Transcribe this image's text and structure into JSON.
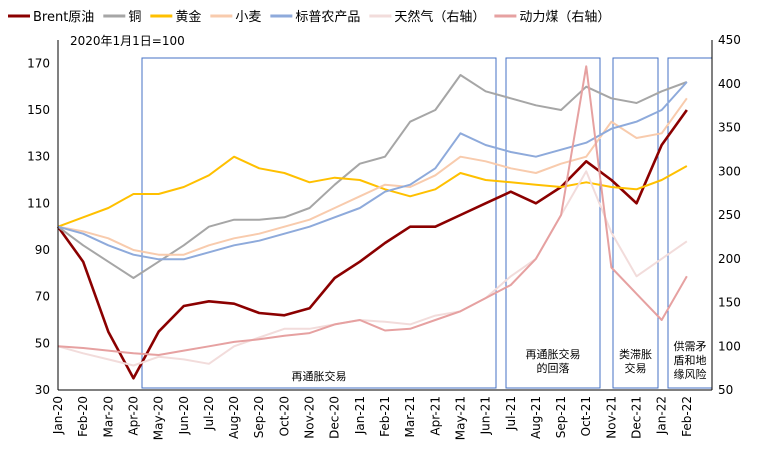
{
  "chart_data": {
    "type": "line",
    "title": "",
    "note": "2020年1月1日=100",
    "x": [
      "Jan-20",
      "Feb-20",
      "Mar-20",
      "Apr-20",
      "May-20",
      "Jun-20",
      "Jul-20",
      "Aug-20",
      "Sep-20",
      "Oct-20",
      "Nov-20",
      "Dec-20",
      "Jan-21",
      "Feb-21",
      "Mar-21",
      "Apr-21",
      "May-21",
      "Jun-21",
      "Jul-21",
      "Aug-21",
      "Sep-21",
      "Oct-21",
      "Nov-21",
      "Dec-21",
      "Jan-22",
      "Feb-22"
    ],
    "y_left": {
      "ylim": [
        30,
        180
      ],
      "ticks": [
        "30",
        "50",
        "70",
        "90",
        "110",
        "130",
        "150",
        "170"
      ]
    },
    "y_right": {
      "ylim": [
        50,
        450
      ],
      "ticks": [
        "50",
        "100",
        "150",
        "200",
        "250",
        "300",
        "350",
        "400",
        "450"
      ]
    },
    "series": [
      {
        "name": "Brent原油",
        "color": "#8b0000",
        "axis": "left",
        "width": 2.6,
        "values": [
          100,
          85,
          55,
          35,
          55,
          66,
          68,
          67,
          63,
          62,
          65,
          78,
          85,
          93,
          100,
          100,
          105,
          110,
          115,
          110,
          117,
          128,
          120,
          110,
          135,
          150
        ]
      },
      {
        "name": "铜",
        "color": "#a6a6a6",
        "axis": "left",
        "width": 2,
        "values": [
          100,
          92,
          85,
          78,
          85,
          92,
          100,
          103,
          103,
          104,
          108,
          118,
          127,
          130,
          145,
          150,
          165,
          158,
          155,
          152,
          150,
          160,
          155,
          153,
          158,
          162
        ]
      },
      {
        "name": "黄金",
        "color": "#ffc000",
        "axis": "left",
        "width": 2,
        "values": [
          100,
          104,
          108,
          114,
          114,
          117,
          122,
          130,
          125,
          123,
          119,
          121,
          120,
          116,
          113,
          116,
          123,
          120,
          119,
          118,
          117,
          119,
          117,
          116,
          120,
          126
        ]
      },
      {
        "name": "小麦",
        "color": "#f8cbad",
        "axis": "left",
        "width": 2,
        "values": [
          100,
          98,
          95,
          90,
          88,
          88,
          92,
          95,
          97,
          100,
          103,
          108,
          113,
          118,
          117,
          122,
          130,
          128,
          125,
          123,
          127,
          130,
          145,
          138,
          140,
          155
        ]
      },
      {
        "name": "标普农产品",
        "color": "#8eaadb",
        "axis": "left",
        "width": 2,
        "values": [
          100,
          97,
          92,
          88,
          86,
          86,
          89,
          92,
          94,
          97,
          100,
          104,
          108,
          115,
          118,
          125,
          140,
          135,
          132,
          130,
          133,
          136,
          142,
          145,
          150,
          162
        ]
      },
      {
        "name": "天然气（右轴）",
        "color": "#f2dcdb",
        "axis": "right",
        "width": 2,
        "values": [
          100,
          92,
          85,
          78,
          88,
          85,
          80,
          100,
          110,
          120,
          120,
          125,
          130,
          128,
          125,
          135,
          140,
          155,
          180,
          200,
          250,
          300,
          230,
          180,
          200,
          220
        ]
      },
      {
        "name": "动力煤（右轴）",
        "color": "#e6a1a1",
        "axis": "right",
        "width": 2,
        "values": [
          100,
          98,
          95,
          92,
          90,
          95,
          100,
          105,
          108,
          112,
          115,
          125,
          130,
          118,
          120,
          130,
          140,
          155,
          170,
          200,
          250,
          420,
          190,
          160,
          130,
          180
        ]
      }
    ],
    "grid": false,
    "legend_position": "top"
  },
  "annotations": [
    {
      "label": "再通胀交易"
    },
    {
      "label": "再通胀交易\n的回落"
    },
    {
      "label": "类滞胀\n交易"
    },
    {
      "label": "供需矛\n盾和地\n缘风险"
    }
  ]
}
